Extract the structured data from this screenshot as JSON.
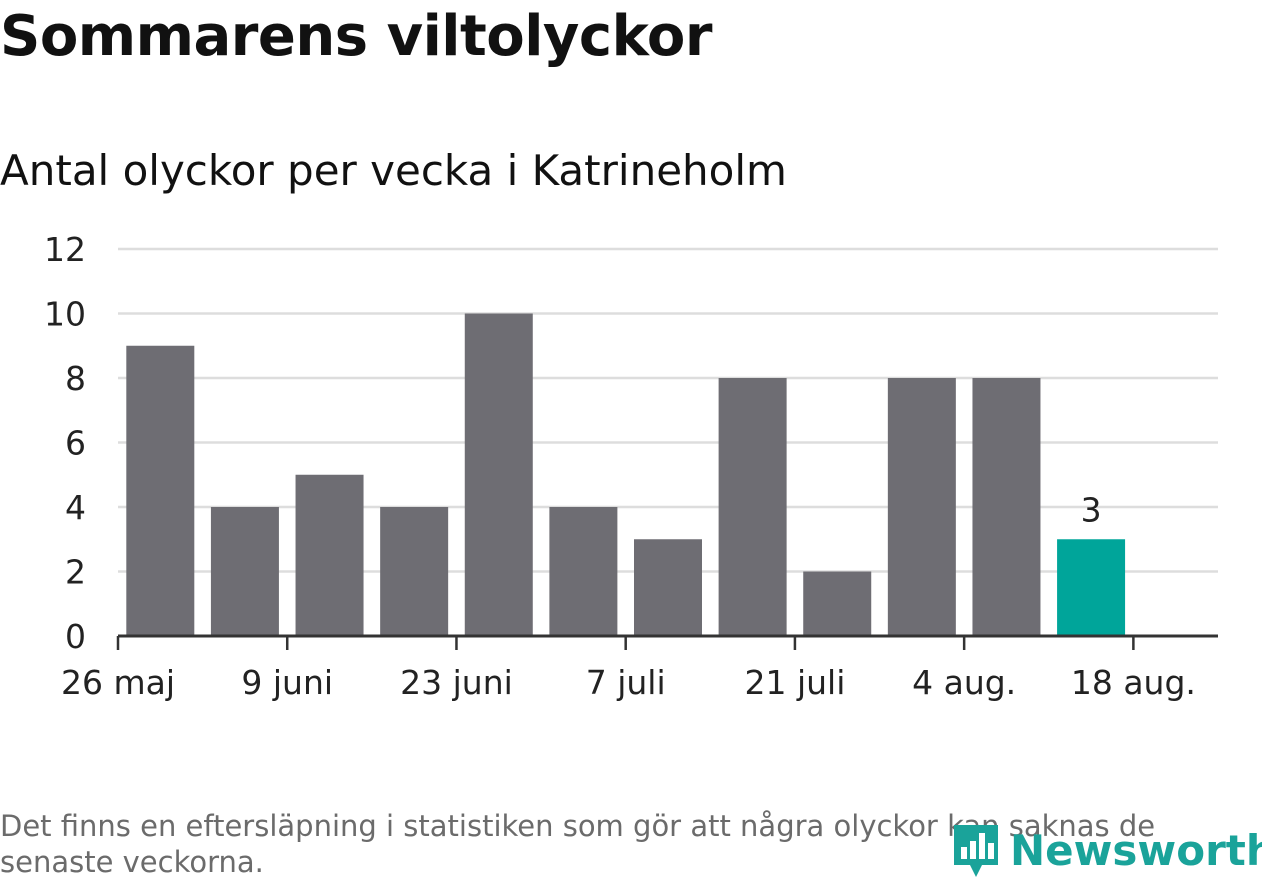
{
  "header": {
    "title": "Sommarens viltolyckor",
    "subtitle": "Antal olyckor per vecka i Katrineholm"
  },
  "footer": {
    "note": "Det finns en eftersläpning i statistiken som gör att några olyckor kan saknas de senaste veckorna.",
    "brand": "Newsworthy",
    "brand_icon": "bar-chart-pin-icon"
  },
  "colors": {
    "bar": "#6e6d73",
    "highlight": "#00a59a",
    "grid": "#dddddd",
    "axis": "#333333",
    "brand": "#1aa39a"
  },
  "chart_data": {
    "type": "bar",
    "x": [
      "2019-06-02",
      "2019-06-09",
      "2019-06-16",
      "2019-06-23",
      "2019-06-30",
      "2019-07-07",
      "2019-07-14",
      "2019-07-21",
      "2019-07-28",
      "2019-08-04",
      "2019-08-11",
      "2019-08-18"
    ],
    "values": [
      9,
      4,
      5,
      4,
      10,
      4,
      3,
      8,
      2,
      8,
      8,
      3
    ],
    "highlight_index": 11,
    "data_labels": [
      {
        "index": 11,
        "text": "3"
      }
    ],
    "x_ticks": [
      {
        "date": "2019-05-26",
        "label": "26 maj"
      },
      {
        "date": "2019-06-09",
        "label": "9 juni"
      },
      {
        "date": "2019-06-23",
        "label": "23 juni"
      },
      {
        "date": "2019-07-07",
        "label": "7 juli"
      },
      {
        "date": "2019-07-21",
        "label": "21 juli"
      },
      {
        "date": "2019-08-04",
        "label": "4 aug."
      },
      {
        "date": "2019-08-18",
        "label": "18 aug."
      }
    ],
    "x_range": [
      "2019-05-26",
      "2019-08-25"
    ],
    "y_ticks": [
      0,
      2,
      4,
      6,
      8,
      10,
      12
    ],
    "ylim": [
      0,
      12
    ],
    "grid": true,
    "legend": "none"
  }
}
